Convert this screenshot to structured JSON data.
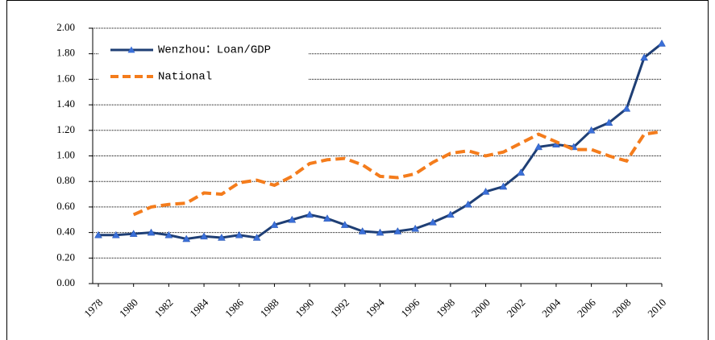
{
  "chart_data": {
    "type": "line",
    "x": [
      1978,
      1979,
      1980,
      1981,
      1982,
      1983,
      1984,
      1985,
      1986,
      1987,
      1988,
      1989,
      1990,
      1991,
      1992,
      1993,
      1994,
      1995,
      1996,
      1997,
      1998,
      1999,
      2000,
      2001,
      2002,
      2003,
      2004,
      2005,
      2006,
      2007,
      2008,
      2009,
      2010
    ],
    "xlim": [
      1978,
      2010
    ],
    "xticks": [
      1978,
      1980,
      1982,
      1984,
      1986,
      1988,
      1990,
      1992,
      1994,
      1996,
      1998,
      2000,
      2002,
      2004,
      2006,
      2008,
      2010
    ],
    "ylim": [
      0,
      2
    ],
    "yticks": [
      {
        "value": 0,
        "label": "0.00"
      },
      {
        "value": 0.2,
        "label": "0.20"
      },
      {
        "value": 0.4,
        "label": "0.40"
      },
      {
        "value": 0.6,
        "label": "0.60"
      },
      {
        "value": 0.8,
        "label": "0.80"
      },
      {
        "value": 1,
        "label": "1.00"
      },
      {
        "value": 1.2,
        "label": "1.20"
      },
      {
        "value": 1.4,
        "label": "1.40"
      },
      {
        "value": 1.6,
        "label": "1.60"
      },
      {
        "value": 1.8,
        "label": "1.80"
      },
      {
        "value": 2,
        "label": "2.00"
      }
    ],
    "grid": true,
    "legend": "upper left",
    "series": [
      {
        "name": "Wenzhou：Loan/GDP",
        "color": "#1f3f75",
        "values": [
          0.38,
          0.38,
          0.39,
          0.4,
          0.38,
          0.35,
          0.37,
          0.36,
          0.38,
          0.36,
          0.46,
          0.5,
          0.54,
          0.51,
          0.46,
          0.41,
          0.4,
          0.41,
          0.43,
          0.48,
          0.54,
          0.62,
          0.72,
          0.76,
          0.87,
          1.07,
          1.09,
          1.07,
          1.2,
          1.26,
          1.37,
          1.77,
          1.88
        ]
      },
      {
        "name": "National",
        "color": "#f47c1c",
        "values": [
          null,
          null,
          0.54,
          0.6,
          0.62,
          0.63,
          0.71,
          0.7,
          0.79,
          0.81,
          0.77,
          0.84,
          0.94,
          0.97,
          0.98,
          0.93,
          0.84,
          0.83,
          0.86,
          0.95,
          1.02,
          1.04,
          1.0,
          1.03,
          1.1,
          1.17,
          1.11,
          1.05,
          1.05,
          1.0,
          0.96,
          1.17,
          1.19
        ]
      }
    ]
  }
}
